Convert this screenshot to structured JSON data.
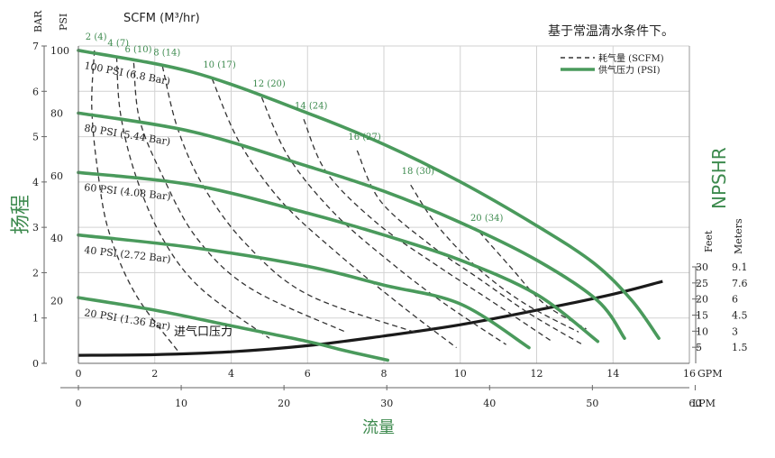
{
  "colors": {
    "green": "#4a9a5c",
    "green_text": "#3d8a4e",
    "npsh": "#1a1a1a",
    "grid": "#d2d2d2",
    "scfm": "#333333",
    "text": "#222222"
  },
  "chart_data": {
    "type": "line",
    "title": "",
    "note": "基于常温清水条件下。",
    "xlabel": "流量",
    "ylabel": "扬程",
    "y2label": "NPSHR",
    "x_gpm": {
      "label": "GPM",
      "ticks": [
        "0",
        "2",
        "4",
        "6",
        "8",
        "10",
        "12",
        "14",
        "16"
      ],
      "range": [
        0,
        16
      ]
    },
    "x_lpm": {
      "label": "LPM",
      "ticks": [
        "0",
        "10",
        "20",
        "30",
        "40",
        "50",
        "60"
      ],
      "range": [
        0,
        60
      ]
    },
    "y_bar": {
      "label": "BAR",
      "ticks": [
        "0",
        "1",
        "2",
        "3",
        "4",
        "5",
        "6",
        "7"
      ],
      "range": [
        0,
        7
      ]
    },
    "y_psi": {
      "label": "PSI",
      "ticks": [
        "20",
        "40",
        "60",
        "80",
        "100"
      ],
      "range": [
        0,
        102
      ]
    },
    "y_feet": {
      "label": "Feet",
      "ticks": [
        "5",
        "10",
        "15",
        "20",
        "25",
        "30"
      ],
      "range": [
        0,
        30
      ]
    },
    "y_meters": {
      "label": "Meters",
      "ticks": [
        "1.5",
        "3",
        "4.5",
        "6",
        "7.6",
        "9.1"
      ]
    },
    "scfm_header": "SCFM (M³/hr)",
    "legend": {
      "position": "top-right",
      "items": [
        {
          "label": "耗气量 (SCFM)",
          "style": "dashed"
        },
        {
          "label": "供气压力 (PSI)",
          "style": "solid"
        }
      ]
    },
    "npsh_label": "进气口压力",
    "pressure_curves": [
      {
        "label": "100 PSI (6.8 Bar)",
        "x": [
          0,
          3,
          6,
          8,
          10,
          12,
          13.5,
          14.5,
          15.2
        ],
        "y": [
          100,
          93,
          80,
          70,
          58,
          44,
          32,
          20,
          8
        ]
      },
      {
        "label": "80 PSI (5.44 Bar)",
        "x": [
          0,
          3,
          6,
          8,
          10,
          12,
          13.6,
          14.3
        ],
        "y": [
          80,
          74,
          63,
          55,
          45,
          33,
          20,
          8
        ]
      },
      {
        "label": "60 PSI (4.08 Bar)",
        "x": [
          0,
          3,
          6,
          8,
          10,
          12,
          13.6
        ],
        "y": [
          61,
          57,
          48,
          41,
          33,
          22,
          7
        ]
      },
      {
        "label": "40 PSI (2.72 Bar)",
        "x": [
          0,
          3,
          6,
          8,
          10,
          11.8
        ],
        "y": [
          41,
          37,
          31,
          25,
          19,
          5
        ]
      },
      {
        "label": "20 PSI (1.36 Bar)",
        "x": [
          0,
          2,
          4,
          6,
          7,
          8.1
        ],
        "y": [
          21,
          17,
          12,
          7,
          4,
          1
        ]
      }
    ],
    "scfm_curves": [
      {
        "label": "2 (4)",
        "x": [
          0.42,
          0.35,
          0.5,
          0.8,
          1.5,
          2.6
        ],
        "y": [
          100,
          82,
          62,
          42,
          22,
          4
        ]
      },
      {
        "label": "4 (7)",
        "x": [
          1.0,
          1.1,
          1.5,
          2.2,
          3.2,
          5.0
        ],
        "y": [
          98,
          80,
          60,
          40,
          24,
          8
        ]
      },
      {
        "label": "6 (10)",
        "x": [
          1.45,
          1.6,
          2.2,
          3.1,
          4.5,
          7.0
        ],
        "y": [
          96,
          78,
          60,
          40,
          24,
          10
        ]
      },
      {
        "label": "8 (14)",
        "x": [
          2.2,
          2.6,
          3.3,
          4.4,
          6.0,
          8.8
        ],
        "y": [
          95,
          75,
          56,
          38,
          22,
          10
        ]
      },
      {
        "label": "10 (17)",
        "x": [
          3.5,
          4.2,
          5.3,
          6.8,
          8.5,
          9.9
        ],
        "y": [
          91,
          71,
          52,
          35,
          18,
          5
        ]
      },
      {
        "label": "12 (20)",
        "x": [
          4.8,
          5.5,
          6.7,
          8.2,
          9.6,
          11.2
        ],
        "y": [
          85,
          66,
          48,
          32,
          19,
          6
        ]
      },
      {
        "label": "14 (24)",
        "x": [
          5.9,
          6.5,
          7.8,
          9.3,
          10.8,
          12.4
        ],
        "y": [
          78,
          61,
          45,
          32,
          20,
          7
        ]
      },
      {
        "label": "16 (27)",
        "x": [
          7.3,
          7.9,
          9.2,
          10.5,
          11.8,
          13.2
        ],
        "y": [
          68,
          52,
          38,
          27,
          16,
          6
        ]
      },
      {
        "label": "18 (30)",
        "x": [
          8.7,
          9.4,
          10.5,
          11.7,
          13.1
        ],
        "y": [
          57,
          44,
          30,
          19,
          10
        ]
      },
      {
        "label": "20 (34)",
        "x": [
          10.5,
          11.3,
          12.2,
          13.3
        ],
        "y": [
          42,
          31,
          19,
          11
        ]
      }
    ],
    "npsh_curve": {
      "x": [
        0,
        2,
        4,
        6,
        8,
        10,
        12,
        14,
        15.3
      ],
      "feet": [
        2.5,
        2.7,
        3.6,
        5.5,
        8.5,
        12,
        16.5,
        21.5,
        25.5
      ]
    }
  }
}
